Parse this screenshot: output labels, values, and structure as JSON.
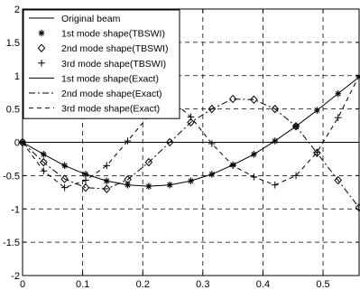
{
  "chart_data": {
    "type": "line",
    "title": "",
    "xlabel": "",
    "ylabel": "",
    "xlim": [
      0,
      0.56
    ],
    "ylim": [
      -2,
      2
    ],
    "x_ticks": [
      0,
      0.1,
      0.2,
      0.3,
      0.4,
      0.5
    ],
    "x_tick_labels": [
      "0",
      "0.1",
      "0.2",
      "0.3",
      "0.4",
      "0.5"
    ],
    "y_ticks": [
      -2,
      -1.5,
      -1,
      -0.5,
      0,
      0.5,
      1,
      1.5,
      2
    ],
    "y_tick_labels": [
      "-2",
      "-1.5",
      "-1",
      "-0.5",
      "0",
      "0.5",
      "1",
      "1.5",
      "2"
    ],
    "grid": true,
    "legend_position": "top-left",
    "series": [
      {
        "name": "Original beam",
        "style": "solid",
        "marker": "none",
        "x": [
          0,
          0.56
        ],
        "y": [
          0,
          0
        ]
      },
      {
        "name": "1st mode shape(TBSWI)",
        "style": "none",
        "marker": "star",
        "x": [
          0,
          0.035,
          0.07,
          0.105,
          0.14,
          0.175,
          0.21,
          0.245,
          0.28,
          0.315,
          0.35,
          0.385,
          0.42,
          0.455,
          0.49,
          0.525,
          0.56
        ],
        "y": [
          0,
          -0.18,
          -0.35,
          -0.48,
          -0.58,
          -0.64,
          -0.66,
          -0.64,
          -0.58,
          -0.48,
          -0.34,
          -0.18,
          0.02,
          0.24,
          0.48,
          0.73,
          0.98
        ]
      },
      {
        "name": "2nd mode shape(TBSWI)",
        "style": "none",
        "marker": "diamond",
        "x": [
          0,
          0.035,
          0.07,
          0.105,
          0.14,
          0.175,
          0.21,
          0.245,
          0.28,
          0.315,
          0.35,
          0.385,
          0.42,
          0.455,
          0.49,
          0.525,
          0.56
        ],
        "y": [
          0,
          -0.3,
          -0.55,
          -0.68,
          -0.7,
          -0.56,
          -0.3,
          0.0,
          0.3,
          0.5,
          0.65,
          0.64,
          0.5,
          0.24,
          -0.16,
          -0.57,
          -0.98
        ]
      },
      {
        "name": "3rd mode shape(TBSWI)",
        "style": "none",
        "marker": "plus",
        "x": [
          0,
          0.035,
          0.07,
          0.105,
          0.14,
          0.175,
          0.21,
          0.245,
          0.28,
          0.315,
          0.35,
          0.385,
          0.42,
          0.455,
          0.49,
          0.525,
          0.56
        ],
        "y": [
          0,
          -0.43,
          -0.68,
          -0.57,
          -0.35,
          0.02,
          0.4,
          0.66,
          0.38,
          -0.02,
          -0.35,
          -0.52,
          -0.64,
          -0.5,
          -0.15,
          0.37,
          1.0
        ]
      },
      {
        "name": "1st mode shape(Exact)",
        "style": "solid",
        "marker": "none",
        "x": [
          0,
          0.035,
          0.07,
          0.105,
          0.14,
          0.175,
          0.21,
          0.245,
          0.28,
          0.315,
          0.35,
          0.385,
          0.42,
          0.455,
          0.49,
          0.525,
          0.56
        ],
        "y": [
          0,
          -0.18,
          -0.35,
          -0.48,
          -0.58,
          -0.64,
          -0.66,
          -0.64,
          -0.58,
          -0.48,
          -0.34,
          -0.18,
          0.02,
          0.24,
          0.48,
          0.73,
          0.98
        ]
      },
      {
        "name": "2nd mode shape(Exact)",
        "style": "dashdot",
        "marker": "none",
        "x": [
          0,
          0.035,
          0.07,
          0.105,
          0.14,
          0.175,
          0.21,
          0.245,
          0.28,
          0.315,
          0.35,
          0.385,
          0.42,
          0.455,
          0.49,
          0.525,
          0.56
        ],
        "y": [
          0,
          -0.3,
          -0.55,
          -0.68,
          -0.7,
          -0.56,
          -0.3,
          0.0,
          0.3,
          0.5,
          0.65,
          0.64,
          0.5,
          0.24,
          -0.16,
          -0.57,
          -0.98
        ]
      },
      {
        "name": "3rd mode shape(Exact)",
        "style": "dashed",
        "marker": "none",
        "x": [
          0,
          0.035,
          0.07,
          0.105,
          0.14,
          0.175,
          0.21,
          0.245,
          0.28,
          0.315,
          0.35,
          0.385,
          0.42,
          0.455,
          0.49,
          0.525,
          0.56
        ],
        "y": [
          0,
          -0.43,
          -0.68,
          -0.57,
          -0.35,
          0.02,
          0.4,
          0.66,
          0.38,
          -0.02,
          -0.35,
          -0.52,
          -0.64,
          -0.5,
          -0.15,
          0.37,
          1.0
        ]
      }
    ]
  },
  "colors": {
    "line": "#000000",
    "grid": "#000000",
    "background": "#ffffff"
  }
}
